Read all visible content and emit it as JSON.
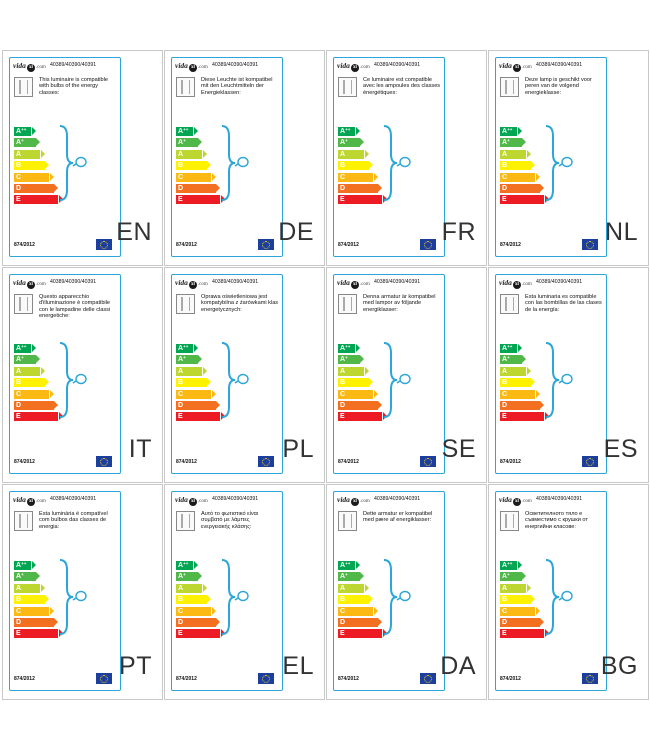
{
  "logo": {
    "text": "vida",
    "circle": "xl",
    "suffix": ".com"
  },
  "product_codes": "40389/40390/40391",
  "regulation": "874/2012",
  "energy_classes": [
    {
      "letter": "A",
      "sup": "++",
      "color": "#00a651"
    },
    {
      "letter": "A",
      "sup": "+",
      "color": "#50b848"
    },
    {
      "letter": "A",
      "sup": "",
      "color": "#bed630"
    },
    {
      "letter": "B",
      "sup": "",
      "color": "#fff200"
    },
    {
      "letter": "C",
      "sup": "",
      "color": "#fdb913"
    },
    {
      "letter": "D",
      "sup": "",
      "color": "#f37021"
    },
    {
      "letter": "E",
      "sup": "",
      "color": "#ed1c24"
    }
  ],
  "icons": {
    "bulb": "lightbulb-icon",
    "flag": "eu-flag-icon",
    "lamp": "lamp-icon"
  },
  "labels": [
    {
      "code": "EN",
      "text": "This luminaire is compatible with bulbs of the energy classes:"
    },
    {
      "code": "DE",
      "text": "Diese Leuchte ist kompatibel mit den Leuchtmitteln der Energieklassen:"
    },
    {
      "code": "FR",
      "text": "Ce luminaire est compatible avec les ampoules des classes énergétiques:"
    },
    {
      "code": "NL",
      "text": "Deze lamp is geschikt voor peren van de volgend energieklasse:"
    },
    {
      "code": "IT",
      "text": "Questo apparecchio d'illuminazione è compatibile con le lampadine delle classi energetiche:"
    },
    {
      "code": "PL",
      "text": "Oprawa oświetleniowa jest kompatybilna z żarówkami klas energetycznych:"
    },
    {
      "code": "SE",
      "text": "Denna armatur är kompatibel med lampor av följande energiklasser:"
    },
    {
      "code": "ES",
      "text": "Esta luminaria es compatible con las bombillas de las clases de la energía:"
    },
    {
      "code": "PT",
      "text": "Esta luminária é compatível com bulbos das classes de energia:"
    },
    {
      "code": "EL",
      "text": "Αυτό το φωτιστικό είναι συμβατό με λάμπες ενεργειακής κλάσης:"
    },
    {
      "code": "DA",
      "text": "Dette armatur er kompatibel med pære af energiklasser:"
    },
    {
      "code": "BG",
      "text": "Осветителното тяло е съвместимо с крушки от енергийни класове:"
    }
  ]
}
